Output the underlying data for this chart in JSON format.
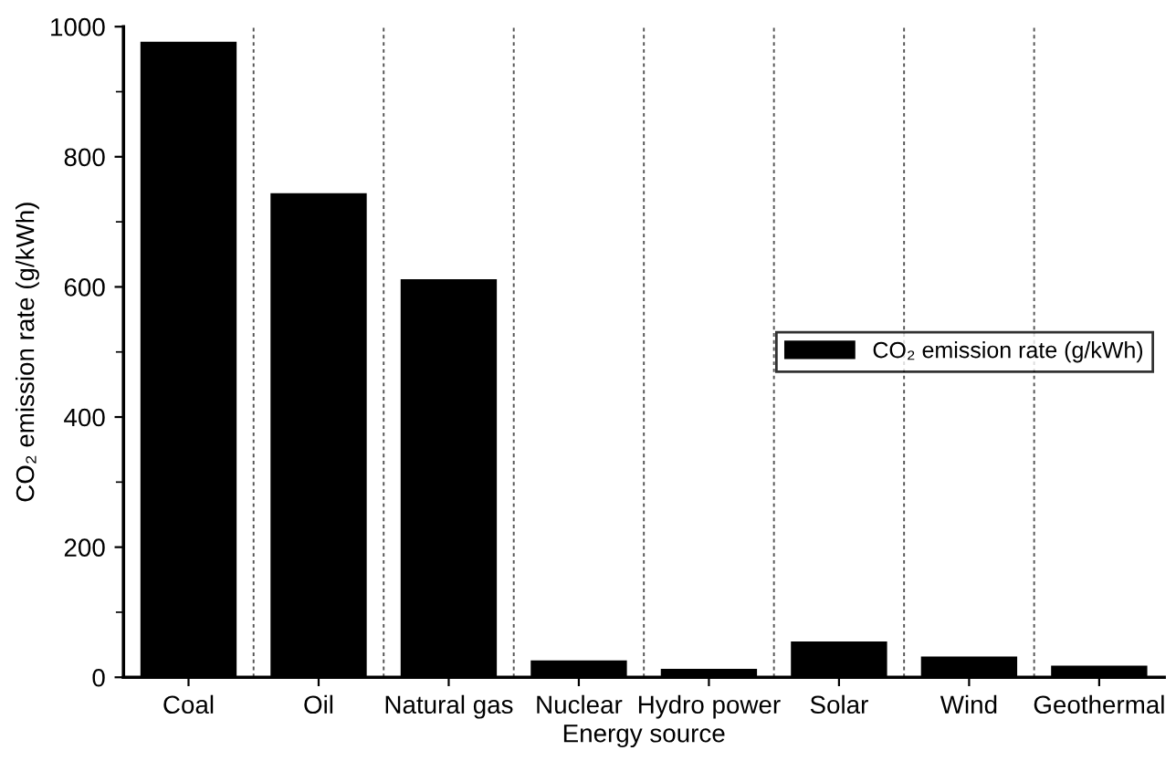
{
  "chart_data": {
    "type": "bar",
    "xlabel": "Energy source",
    "ylabel": "CO₂ emission rate (g/kWh)",
    "categories": [
      "Coal",
      "Oil",
      "Natural gas",
      "Nuclear",
      "Hydro power",
      "Solar",
      "Wind",
      "Geothermal"
    ],
    "series": [
      {
        "name": "CO₂ emission rate (g/kWh)",
        "color": "#000000",
        "values": [
          975,
          742,
          610,
          24,
          11,
          53,
          30,
          16
        ]
      }
    ],
    "ylim": [
      0,
      1000
    ],
    "yticks": [
      0,
      200,
      400,
      600,
      800,
      1000
    ],
    "grid": "x",
    "legend": "center right"
  }
}
